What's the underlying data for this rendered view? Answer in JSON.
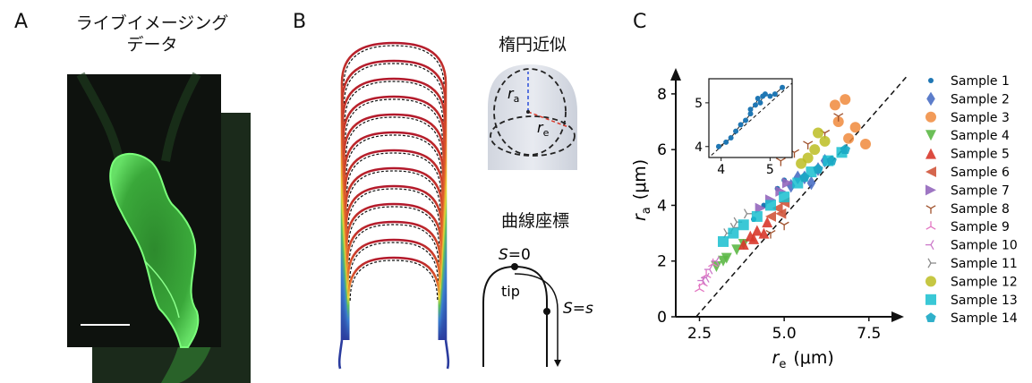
{
  "panelA": {
    "letter": "A",
    "title_line1": "ライブイメージング",
    "title_line2": "データ"
  },
  "panelB": {
    "letter": "B",
    "ellipse_label": "楕円近似",
    "ellipse_ra": "r",
    "ellipse_ra_sub": "a",
    "ellipse_re": "r",
    "ellipse_re_sub": "e",
    "curve_label": "曲線座標",
    "s_zero": "S=0",
    "tip": "tip",
    "s_equals": "S=s"
  },
  "panelC": {
    "letter": "C",
    "colors": {
      "Sample 1": "#1f77b4",
      "Sample 2": "#4a6fc4",
      "Sample 3": "#f08a3c",
      "Sample 4": "#5cb846",
      "Sample 5": "#d8372b",
      "Sample 6": "#d0553b",
      "Sample 7": "#9467bd",
      "Sample 8": "#a0522d",
      "Sample 9": "#e377c2",
      "Sample 10": "#cc79c9",
      "Sample 11": "#8c8c8c",
      "Sample 12": "#bcbd22",
      "Sample 13": "#17becf",
      "Sample 14": "#1aa7c4"
    }
  },
  "chart_data": {
    "type": "scatter",
    "xlabel_main": "r",
    "xlabel_sub": "e",
    "xlabel_unit": "(μm)",
    "ylabel_main": "r",
    "ylabel_sub": "a",
    "ylabel_unit": "(μm)",
    "xlim": [
      1.8,
      8.8
    ],
    "ylim": [
      0,
      8.8
    ],
    "xticks": [
      "2.5",
      "5.0",
      "7.5"
    ],
    "yticks": [
      "0",
      "2",
      "4",
      "6",
      "8"
    ],
    "reference_line": "y = x (dashed)",
    "legend": [
      "Sample 1",
      "Sample 2",
      "Sample 3",
      "Sample 4",
      "Sample 5",
      "Sample 6",
      "Sample 7",
      "Sample 8",
      "Sample 9",
      "Sample 10",
      "Sample 11",
      "Sample 12",
      "Sample 13",
      "Sample 14"
    ],
    "legend_markers": [
      "circle-small",
      "diamond",
      "circle",
      "triangle-down",
      "triangle-up",
      "triangle-left",
      "triangle-right",
      "tri-down",
      "tri-up",
      "tri-left",
      "tri-right",
      "circle",
      "square",
      "pentagon"
    ],
    "series": [
      {
        "name": "Sample 1",
        "points": [
          [
            4.1,
            3.5
          ],
          [
            4.4,
            4.0
          ],
          [
            4.8,
            4.6
          ],
          [
            5.0,
            4.9
          ]
        ]
      },
      {
        "name": "Sample 2",
        "points": [
          [
            5.2,
            4.7
          ],
          [
            5.6,
            5.0
          ],
          [
            6.0,
            5.3
          ],
          [
            6.2,
            5.6
          ],
          [
            5.4,
            5.0
          ],
          [
            5.8,
            4.8
          ]
        ]
      },
      {
        "name": "Sample 3",
        "points": [
          [
            6.5,
            7.6
          ],
          [
            6.8,
            7.8
          ],
          [
            7.1,
            6.8
          ],
          [
            6.6,
            7.0
          ],
          [
            7.4,
            6.2
          ],
          [
            6.9,
            6.4
          ]
        ]
      },
      {
        "name": "Sample 4",
        "points": [
          [
            3.0,
            1.8
          ],
          [
            3.3,
            2.1
          ],
          [
            3.6,
            2.4
          ],
          [
            3.2,
            2.0
          ],
          [
            3.8,
            2.6
          ]
        ]
      },
      {
        "name": "Sample 5",
        "points": [
          [
            3.8,
            2.6
          ],
          [
            4.0,
            2.9
          ],
          [
            4.2,
            3.1
          ],
          [
            4.5,
            3.4
          ],
          [
            4.1,
            2.8
          ],
          [
            4.4,
            3.0
          ]
        ]
      },
      {
        "name": "Sample 6",
        "points": [
          [
            4.6,
            3.6
          ],
          [
            4.8,
            3.9
          ],
          [
            5.0,
            4.1
          ],
          [
            4.9,
            3.7
          ]
        ]
      },
      {
        "name": "Sample 7",
        "points": [
          [
            4.3,
            3.9
          ],
          [
            4.6,
            4.2
          ],
          [
            4.9,
            4.5
          ],
          [
            5.1,
            4.8
          ]
        ]
      },
      {
        "name": "Sample 8",
        "points": [
          [
            4.9,
            5.6
          ],
          [
            5.3,
            5.9
          ],
          [
            5.7,
            6.2
          ],
          [
            6.2,
            6.6
          ],
          [
            6.6,
            7.2
          ],
          [
            4.6,
            3.0
          ],
          [
            5.0,
            3.3
          ]
        ]
      },
      {
        "name": "Sample 9",
        "points": [
          [
            2.5,
            1.0
          ],
          [
            2.7,
            1.5
          ],
          [
            2.9,
            1.9
          ],
          [
            2.6,
            1.2
          ]
        ]
      },
      {
        "name": "Sample 10",
        "points": [
          [
            2.6,
            1.3
          ],
          [
            2.8,
            1.7
          ],
          [
            3.0,
            2.0
          ],
          [
            2.7,
            1.4
          ]
        ]
      },
      {
        "name": "Sample 11",
        "points": [
          [
            3.3,
            3.0
          ],
          [
            3.6,
            3.4
          ],
          [
            3.9,
            3.7
          ],
          [
            3.5,
            3.2
          ]
        ]
      },
      {
        "name": "Sample 12",
        "points": [
          [
            5.5,
            5.5
          ],
          [
            5.9,
            6.0
          ],
          [
            6.2,
            6.3
          ],
          [
            5.7,
            5.7
          ],
          [
            6.0,
            6.6
          ]
        ]
      },
      {
        "name": "Sample 13",
        "points": [
          [
            3.2,
            2.7
          ],
          [
            3.5,
            3.0
          ],
          [
            3.8,
            3.3
          ],
          [
            4.2,
            3.6
          ],
          [
            4.6,
            4.0
          ],
          [
            5.0,
            4.3
          ],
          [
            5.4,
            4.8
          ],
          [
            5.8,
            5.2
          ],
          [
            6.3,
            5.6
          ],
          [
            6.7,
            5.9
          ]
        ]
      },
      {
        "name": "Sample 14",
        "points": [
          [
            5.6,
            5.0
          ],
          [
            6.0,
            5.3
          ],
          [
            6.4,
            5.6
          ],
          [
            6.8,
            6.0
          ]
        ]
      }
    ],
    "inset": {
      "xticks": [
        "4",
        "5"
      ],
      "yticks": [
        "4",
        "5"
      ],
      "xlim": [
        3.75,
        5.45
      ],
      "ylim": [
        3.75,
        5.55
      ],
      "series_name": "Sample 1",
      "points": [
        [
          3.95,
          4.0
        ],
        [
          4.1,
          4.1
        ],
        [
          4.2,
          4.2
        ],
        [
          4.3,
          4.35
        ],
        [
          4.4,
          4.5
        ],
        [
          4.5,
          4.6
        ],
        [
          4.6,
          4.75
        ],
        [
          4.6,
          4.85
        ],
        [
          4.7,
          4.95
        ],
        [
          4.75,
          5.1
        ],
        [
          4.8,
          5.0
        ],
        [
          4.85,
          5.15
        ],
        [
          4.9,
          5.2
        ],
        [
          5.0,
          5.15
        ],
        [
          5.1,
          5.2
        ],
        [
          5.25,
          5.35
        ]
      ]
    }
  }
}
